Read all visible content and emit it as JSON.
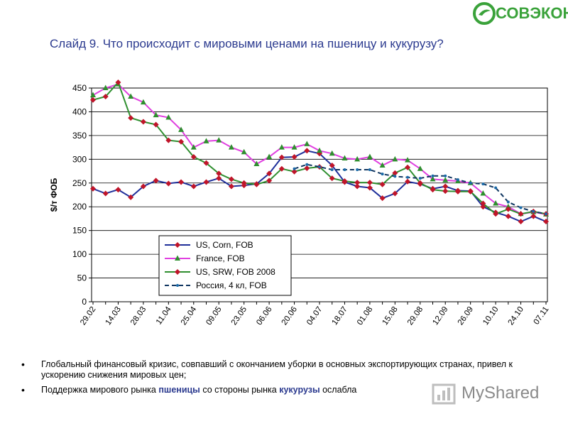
{
  "logo": {
    "text": "СОВЭКОН"
  },
  "slide_title": "Слайд 9. Что происходит с мировыми ценами  на пшеницу и кукурузу?",
  "chart_data": {
    "type": "line",
    "ylabel": "$/т ФОБ",
    "ylim": [
      0,
      450
    ],
    "yticks": [
      0,
      50,
      100,
      150,
      200,
      250,
      300,
      350,
      400,
      450
    ],
    "grid": true,
    "legend_position": "lower-left",
    "x": [
      "29.02",
      "",
      "14.03",
      "",
      "28.03",
      "",
      "11.04",
      "",
      "25.04",
      "",
      "09.05",
      "",
      "23.05",
      "",
      "06.06",
      "",
      "20.06",
      "",
      "04.07",
      "",
      "18.07",
      "",
      "01.08",
      "",
      "15.08",
      "",
      "29.08",
      "",
      "12.09",
      "",
      "26.09",
      "",
      "10.10",
      "",
      "24.10",
      "",
      "07.11"
    ],
    "xtick_labels": [
      "29.02",
      "14.03",
      "28.03",
      "11.04",
      "25.04",
      "09.05",
      "23.05",
      "06.06",
      "20.06",
      "04.07",
      "18.07",
      "01.08",
      "15.08",
      "29.08",
      "12.09",
      "26.09",
      "10.10",
      "24.10",
      "07.11"
    ],
    "series": [
      {
        "name": "US, Corn, FOB",
        "color": "#1f2f9a",
        "marker": "diamond",
        "marker_color": "#c0152a",
        "dash": false,
        "values": [
          238,
          228,
          236,
          220,
          243,
          255,
          249,
          252,
          243,
          252,
          260,
          243,
          245,
          248,
          270,
          304,
          305,
          318,
          312,
          287,
          252,
          243,
          240,
          218,
          228,
          253,
          248,
          238,
          243,
          234,
          233,
          200,
          188,
          180,
          169,
          180,
          169
        ]
      },
      {
        "name": "France, FOB",
        "color": "#e040e0",
        "marker": "triangle",
        "marker_color": "#2f8f2f",
        "dash": false,
        "values": [
          435,
          450,
          458,
          432,
          420,
          393,
          388,
          362,
          325,
          338,
          340,
          325,
          315,
          290,
          305,
          325,
          325,
          332,
          318,
          312,
          302,
          300,
          305,
          287,
          300,
          298,
          280,
          258,
          256,
          254,
          250,
          228,
          207,
          200,
          185,
          189,
          184
        ]
      },
      {
        "name": "US, SRW, FOB 2008",
        "color": "#2f8f2f",
        "marker": "diamond",
        "marker_color": "#c0152a",
        "dash": false,
        "values": [
          425,
          432,
          462,
          387,
          379,
          373,
          340,
          337,
          305,
          292,
          270,
          258,
          250,
          247,
          255,
          280,
          274,
          281,
          284,
          260,
          254,
          251,
          251,
          247,
          271,
          283,
          250,
          236,
          233,
          232,
          232,
          207,
          185,
          195,
          185,
          190,
          185
        ]
      },
      {
        "name": "Россия, 4 кл, FOB",
        "color": "#0f3560",
        "marker": "dot",
        "marker_color": "#1a6aa8",
        "dash": true,
        "values": [
          null,
          null,
          null,
          null,
          null,
          null,
          null,
          null,
          null,
          null,
          null,
          null,
          null,
          null,
          null,
          null,
          280,
          289,
          284,
          278,
          278,
          278,
          278,
          269,
          264,
          262,
          260,
          265,
          265,
          257,
          250,
          248,
          240,
          210,
          198,
          190,
          185
        ]
      }
    ]
  },
  "bullets": [
    {
      "text": "Глобальный финансовый кризис, совпавший с окончанием уборки в основных экспортирующих странах,  привел к ускорению снижения мировых цен;"
    },
    {
      "pre": "Поддержка мирового рынка ",
      "hl1": "пшеницы",
      "mid": " со стороны рынка ",
      "hl2": "кукурузы",
      "post": " ослабла"
    }
  ],
  "watermark": {
    "text": "MyShared"
  }
}
